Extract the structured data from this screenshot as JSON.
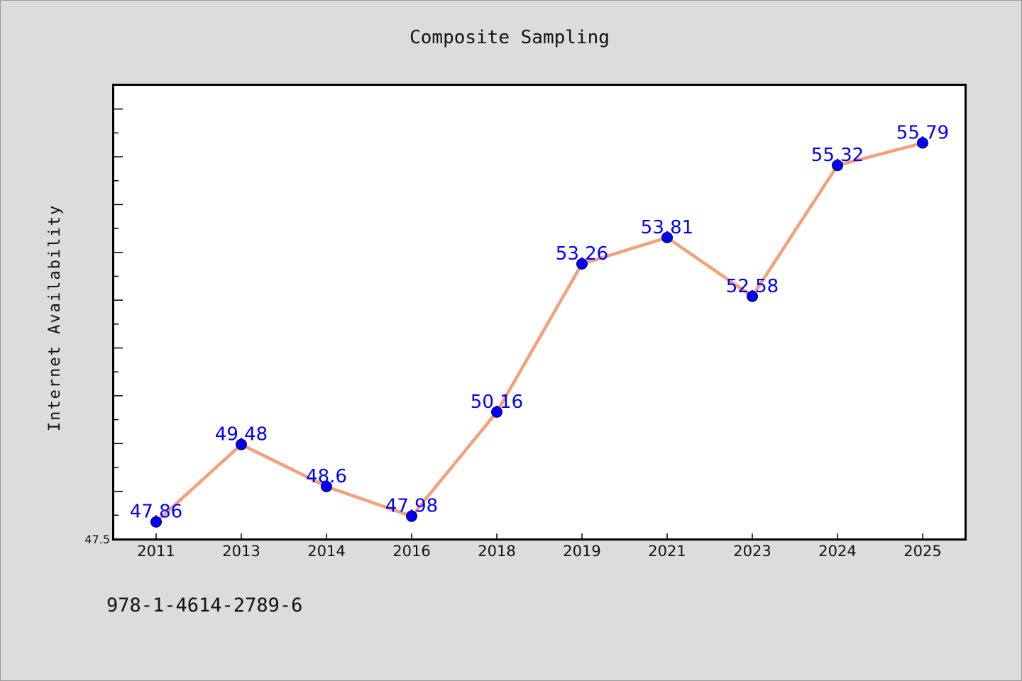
{
  "chart_data": {
    "type": "line",
    "title": "Composite Sampling",
    "xlabel": "",
    "ylabel": "Internet Availability",
    "categories": [
      "2011",
      "2013",
      "2014",
      "2016",
      "2018",
      "2019",
      "2021",
      "2023",
      "2024",
      "2025"
    ],
    "series": [
      {
        "values": [
          47.86,
          49.48,
          48.6,
          47.98,
          50.16,
          53.26,
          53.81,
          52.58,
          55.32,
          55.79
        ]
      }
    ],
    "data_labels": [
      "47.86",
      "49.48",
      "48.6",
      "47.98",
      "50.16",
      "53.26",
      "53.81",
      "52.58",
      "55.32",
      "55.79"
    ],
    "yticks_labeled": [
      "47.5"
    ],
    "ylim": [
      47.5,
      57.0
    ],
    "grid": false,
    "legend": "none",
    "colors": {
      "line": "#f4a07a",
      "marker": "#0000ee",
      "marker_edge": "#000066",
      "data_label": "#0000ff",
      "plot_bg": "#ffffff",
      "figure_bg": "#dcdcdc"
    }
  },
  "footer": {
    "isbn": "978-1-4614-2789-6"
  }
}
